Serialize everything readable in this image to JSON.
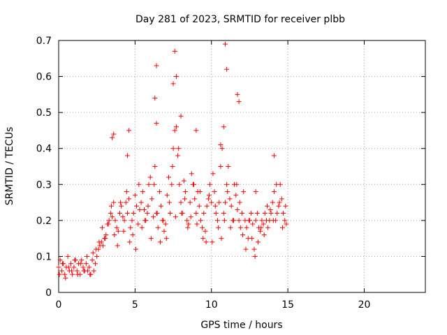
{
  "chart_data": {
    "type": "scatter",
    "title": "Day 281 of 2023, SRMTID for receiver plbb",
    "xlabel": "GPS time / hours",
    "ylabel": "SRMTID / TECUs",
    "xlim": [
      0,
      24
    ],
    "ylim": [
      0,
      0.7
    ],
    "x_ticks": [
      0,
      5,
      10,
      15,
      20
    ],
    "x_tick_labels": [
      "0",
      "5",
      "10",
      "15",
      "20"
    ],
    "y_ticks": [
      0,
      0.1,
      0.2,
      0.3,
      0.4,
      0.5,
      0.6,
      0.7
    ],
    "y_tick_labels": [
      "0",
      "0.1",
      "0.2",
      "0.3",
      "0.4",
      "0.5",
      "0.6",
      "0.7"
    ],
    "grid": true,
    "marker": "+",
    "colors": {
      "points": "#ff0000",
      "grid": "#a0a0a0",
      "axes": "#000000"
    },
    "series": [
      {
        "name": "SRMTID",
        "x": [
          0.0,
          0.1,
          0.2,
          0.3,
          0.4,
          0.5,
          0.6,
          0.7,
          0.8,
          0.9,
          1.0,
          1.1,
          1.2,
          1.3,
          1.4,
          1.5,
          1.6,
          1.7,
          1.8,
          1.9,
          2.0,
          2.1,
          2.2,
          2.3,
          2.4,
          2.5,
          2.6,
          2.7,
          2.8,
          2.9,
          3.0,
          3.1,
          3.2,
          3.3,
          3.4,
          3.5,
          3.6,
          3.7,
          3.8,
          3.9,
          4.0,
          4.1,
          4.2,
          4.3,
          4.4,
          4.5,
          4.6,
          4.7,
          4.8,
          4.9,
          5.0,
          5.1,
          5.2,
          5.3,
          5.4,
          5.5,
          5.6,
          5.7,
          5.8,
          5.9,
          6.0,
          6.1,
          6.2,
          6.3,
          6.4,
          6.5,
          6.6,
          6.7,
          6.8,
          6.9,
          7.0,
          7.1,
          7.2,
          7.3,
          7.4,
          7.5,
          7.6,
          7.7,
          7.8,
          7.9,
          8.0,
          8.1,
          8.2,
          8.3,
          8.4,
          8.5,
          8.6,
          8.7,
          8.8,
          8.9,
          9.0,
          9.1,
          9.2,
          9.3,
          9.4,
          9.5,
          9.6,
          9.7,
          9.8,
          9.9,
          10.0,
          10.1,
          10.2,
          10.3,
          10.4,
          10.5,
          10.6,
          10.7,
          10.8,
          10.9,
          11.0,
          11.1,
          11.2,
          11.3,
          11.4,
          11.5,
          11.6,
          11.7,
          11.8,
          11.9,
          12.0,
          12.1,
          12.2,
          12.3,
          12.4,
          12.5,
          12.6,
          12.7,
          12.8,
          12.9,
          13.0,
          13.1,
          13.2,
          13.3,
          13.4,
          13.5,
          13.6,
          13.7,
          13.8,
          13.9,
          14.0,
          14.1,
          14.2,
          14.3,
          14.4,
          14.5,
          14.6,
          14.7,
          14.8,
          14.9,
          0.05,
          0.25,
          0.45,
          0.65,
          0.85,
          1.05,
          1.25,
          1.45,
          1.65,
          1.85,
          2.05,
          2.25,
          2.45,
          2.65,
          2.85,
          3.05,
          3.25,
          3.45,
          3.65,
          3.85,
          4.05,
          4.25,
          4.45,
          4.65,
          4.85,
          5.05,
          5.25,
          5.45,
          5.65,
          5.85,
          6.05,
          6.25,
          6.45,
          6.65,
          6.85,
          7.05,
          7.25,
          7.45,
          7.65,
          7.85,
          8.05,
          8.25,
          8.45,
          8.65,
          8.85,
          9.05,
          9.25,
          9.45,
          9.65,
          9.85,
          10.05,
          10.25,
          10.45,
          10.65,
          10.85,
          11.05,
          11.25,
          11.45,
          11.65,
          11.85,
          12.05,
          12.25,
          12.45,
          12.65,
          12.85,
          13.05,
          13.25,
          13.45,
          13.65,
          13.85,
          14.05,
          14.25,
          14.45,
          14.65,
          14.85,
          3.6,
          4.6,
          6.4,
          7.6,
          7.7,
          7.5,
          8.0,
          9.0,
          10.6,
          10.8,
          10.9,
          11.0,
          11.7,
          11.8,
          6.3,
          6.4,
          4.5,
          3.5,
          12.9,
          14.1
        ],
        "y": [
          0.07,
          0.09,
          0.06,
          0.08,
          0.05,
          0.07,
          0.1,
          0.06,
          0.08,
          0.05,
          0.07,
          0.09,
          0.06,
          0.08,
          0.05,
          0.09,
          0.07,
          0.06,
          0.08,
          0.06,
          0.07,
          0.05,
          0.09,
          0.06,
          0.08,
          0.1,
          0.12,
          0.13,
          0.14,
          0.13,
          0.15,
          0.16,
          0.19,
          0.2,
          0.22,
          0.21,
          0.25,
          0.2,
          0.18,
          0.17,
          0.22,
          0.24,
          0.21,
          0.2,
          0.25,
          0.22,
          0.26,
          0.18,
          0.2,
          0.22,
          0.27,
          0.24,
          0.19,
          0.23,
          0.25,
          0.28,
          0.23,
          0.2,
          0.22,
          0.3,
          0.32,
          0.26,
          0.21,
          0.35,
          0.22,
          0.18,
          0.28,
          0.24,
          0.2,
          0.17,
          0.19,
          0.27,
          0.32,
          0.22,
          0.3,
          0.4,
          0.45,
          0.46,
          0.38,
          0.3,
          0.25,
          0.22,
          0.31,
          0.28,
          0.2,
          0.19,
          0.25,
          0.33,
          0.3,
          0.26,
          0.22,
          0.28,
          0.24,
          0.2,
          0.18,
          0.22,
          0.17,
          0.24,
          0.26,
          0.3,
          0.25,
          0.33,
          0.28,
          0.22,
          0.2,
          0.25,
          0.35,
          0.4,
          0.22,
          0.25,
          0.3,
          0.35,
          0.26,
          0.24,
          0.2,
          0.3,
          0.27,
          0.23,
          0.2,
          0.18,
          0.22,
          0.28,
          0.2,
          0.18,
          0.15,
          0.2,
          0.22,
          0.19,
          0.12,
          0.2,
          0.22,
          0.18,
          0.17,
          0.2,
          0.19,
          0.22,
          0.2,
          0.18,
          0.2,
          0.22,
          0.25,
          0.28,
          0.2,
          0.22,
          0.24,
          0.3,
          0.26,
          0.22,
          0.2,
          0.19,
          0.05,
          0.08,
          0.04,
          0.07,
          0.06,
          0.09,
          0.05,
          0.08,
          0.06,
          0.1,
          0.05,
          0.11,
          0.12,
          0.14,
          0.18,
          0.15,
          0.19,
          0.24,
          0.16,
          0.13,
          0.25,
          0.17,
          0.28,
          0.14,
          0.16,
          0.12,
          0.3,
          0.18,
          0.2,
          0.24,
          0.15,
          0.3,
          0.22,
          0.14,
          0.2,
          0.15,
          0.25,
          0.35,
          0.21,
          0.4,
          0.22,
          0.26,
          0.18,
          0.21,
          0.3,
          0.19,
          0.28,
          0.15,
          0.14,
          0.27,
          0.14,
          0.24,
          0.18,
          0.15,
          0.2,
          0.28,
          0.18,
          0.2,
          0.3,
          0.25,
          0.16,
          0.12,
          0.2,
          0.15,
          0.1,
          0.14,
          0.18,
          0.16,
          0.24,
          0.23,
          0.2,
          0.3,
          0.25,
          0.18,
          0.24,
          0.44,
          0.45,
          0.63,
          0.67,
          0.6,
          0.58,
          0.49,
          0.45,
          0.41,
          0.46,
          0.69,
          0.62,
          0.55,
          0.53,
          0.54,
          0.47,
          0.38,
          0.43,
          0.28,
          0.38
        ]
      }
    ]
  }
}
